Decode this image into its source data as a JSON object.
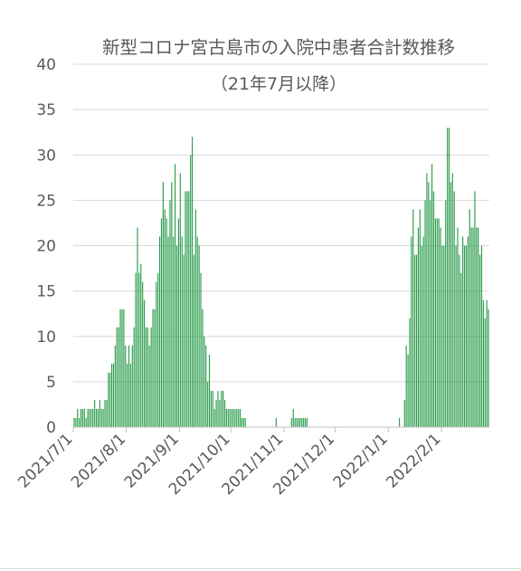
{
  "chart_data": {
    "type": "bar",
    "title": "新型コロナ宮古島市の入院中患者合計数推移",
    "subtitle": "（21年7月以降）",
    "xlabel": "",
    "ylabel": "",
    "ylim": [
      0,
      40
    ],
    "yticks": [
      "0",
      "5",
      "10",
      "15",
      "20",
      "25",
      "30",
      "35",
      "40"
    ],
    "x_range": [
      "2021-07-01",
      "2022-02-28"
    ],
    "xtick_labels": [
      "2021/7/1",
      "2021/8/1",
      "2021/9/1",
      "2021/10/1",
      "2021/11/1",
      "2021/12/1",
      "2022/1/1",
      "2022/2/1"
    ],
    "xtick_dates": [
      "2021-07-01",
      "2021-08-01",
      "2021-09-01",
      "2021-10-01",
      "2021-11-01",
      "2021-12-01",
      "2022-01-01",
      "2022-02-01"
    ],
    "grid": true,
    "legend": "none",
    "color": "#2e9e4f",
    "series": [
      {
        "start_date": "2021-07-01",
        "values": [
          1,
          1,
          2,
          1,
          2,
          2,
          2,
          1,
          2,
          2,
          2,
          2,
          3,
          2,
          2,
          3,
          2,
          2,
          3,
          3,
          6,
          6,
          7,
          7,
          9,
          11,
          11,
          13,
          13,
          13,
          9,
          7,
          9,
          7,
          9,
          11,
          17,
          22,
          17,
          18,
          16,
          14,
          11,
          11,
          9,
          11,
          13,
          13,
          16,
          17,
          21,
          23,
          27,
          24,
          23,
          21,
          25,
          27,
          21,
          29,
          20,
          23,
          28,
          21,
          19,
          26,
          26,
          26,
          30,
          32,
          19,
          24,
          21,
          20,
          17,
          13,
          10,
          9,
          5,
          8,
          4,
          4,
          2,
          3,
          4,
          3,
          4,
          4,
          3,
          2,
          2,
          2,
          2,
          2,
          2,
          2,
          2,
          2,
          1,
          1,
          1,
          0,
          0,
          0,
          0,
          0,
          0,
          0,
          0,
          0,
          0,
          0,
          0,
          0,
          0,
          0,
          0,
          0,
          1,
          0,
          0,
          0,
          0,
          0,
          0,
          0,
          0,
          1,
          2,
          1,
          1,
          1,
          1,
          1,
          1,
          1,
          1,
          0,
          0,
          0,
          0,
          0,
          0,
          0,
          0,
          0,
          0,
          0,
          0,
          0,
          0,
          0,
          0,
          0,
          0,
          0,
          0,
          0,
          0,
          0,
          0,
          0,
          0,
          0,
          0,
          0,
          0,
          0,
          0,
          0,
          0,
          0,
          0,
          0,
          0,
          0,
          0,
          0,
          0,
          0,
          0,
          0,
          0,
          0,
          0,
          0,
          0,
          0,
          0,
          0,
          1,
          0,
          0,
          3,
          9,
          8,
          12,
          21,
          24,
          19,
          19,
          22,
          24,
          20,
          21,
          25,
          28,
          27,
          25,
          29,
          26,
          23,
          23,
          23,
          22,
          20,
          20,
          25,
          33,
          33,
          27,
          28,
          26,
          20,
          22,
          19,
          17,
          21,
          20,
          20,
          21,
          24,
          22,
          22,
          26,
          22,
          22,
          19,
          20,
          14,
          12,
          14,
          13
        ]
      }
    ]
  }
}
